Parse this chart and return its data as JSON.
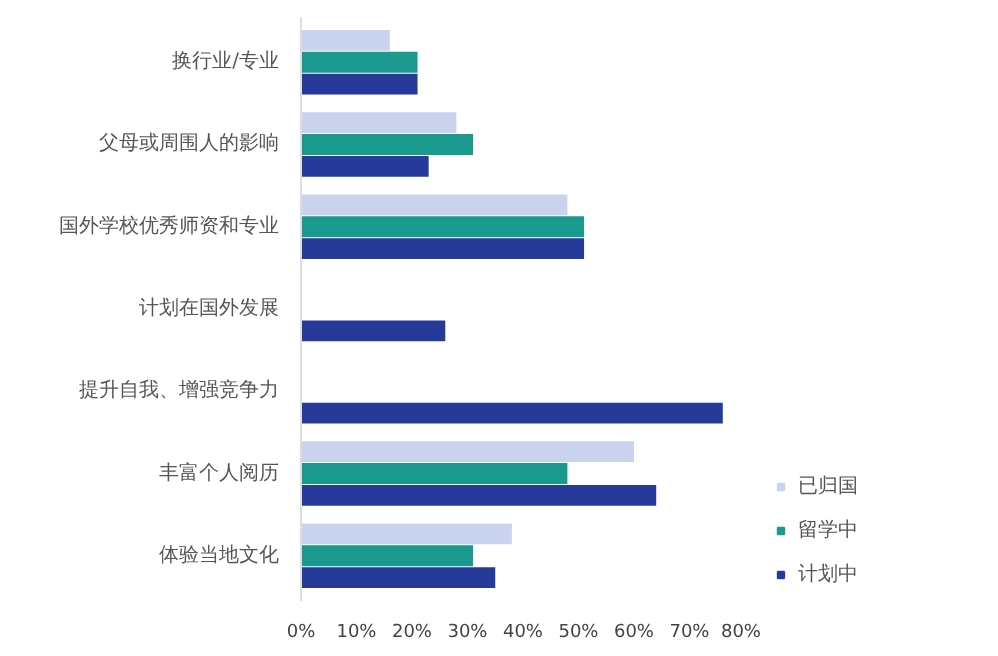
{
  "chart_data": {
    "type": "bar",
    "orientation": "horizontal",
    "categories": [
      "换行业/专业",
      "父母或周围人的影响",
      "国外学校优秀师资和专业",
      "计划在国外发展",
      "提升自我、增强竞争力",
      "丰富个人阅历",
      "体验当地文化"
    ],
    "series": [
      {
        "name": "已归国",
        "color": "#c9d3ee",
        "values": [
          16,
          28,
          48,
          null,
          null,
          60,
          38
        ]
      },
      {
        "name": "留学中",
        "color": "#1a9a8f",
        "values": [
          21,
          31,
          51,
          null,
          null,
          48,
          31
        ]
      },
      {
        "name": "计划中",
        "color": "#263a99",
        "values": [
          21,
          23,
          51,
          26,
          76,
          64,
          35
        ]
      }
    ],
    "xlim": [
      0,
      80
    ],
    "xticks": [
      {
        "value": 0,
        "label": "0%"
      },
      {
        "value": 10,
        "label": "10%"
      },
      {
        "value": 20,
        "label": "20%"
      },
      {
        "value": 30,
        "label": "30%"
      },
      {
        "value": 40,
        "label": "40%"
      },
      {
        "value": 50,
        "label": "50%"
      },
      {
        "value": 60,
        "label": "60%"
      },
      {
        "value": 70,
        "label": "70%"
      },
      {
        "value": 80,
        "label": "80%"
      }
    ],
    "grid": false,
    "legend": "bottom right"
  }
}
